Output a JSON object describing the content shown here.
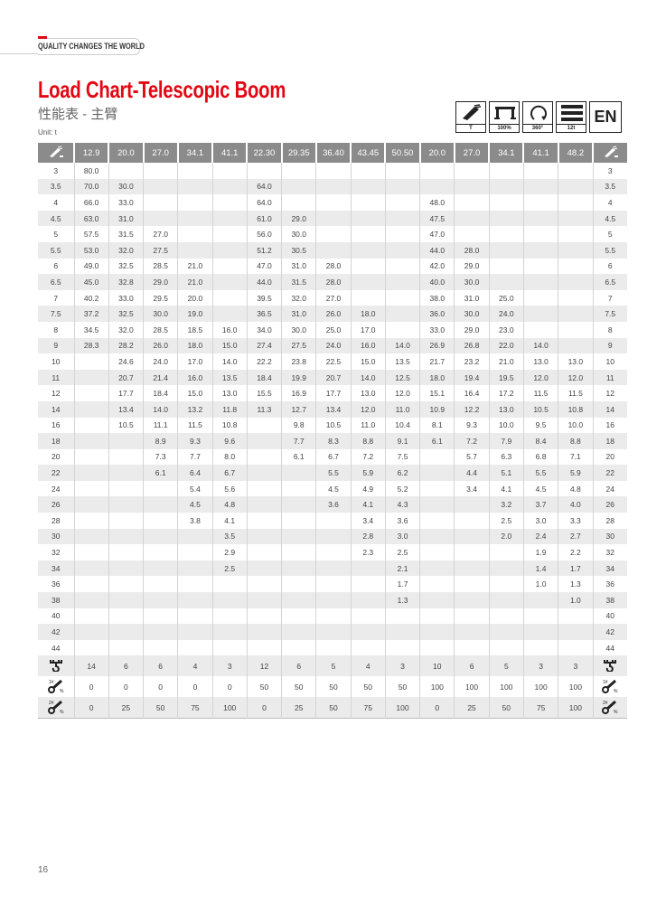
{
  "header": {
    "tagline": "QUALITY CHANGES THE WORLD"
  },
  "title": "Load Chart-Telescopic Boom",
  "subtitle": "性能表 - 主臂",
  "unit": "Unit: t",
  "badges": [
    {
      "icon": "boom-icon",
      "label": "T"
    },
    {
      "icon": "outrigger-icon",
      "label": "100%"
    },
    {
      "icon": "rotation-icon",
      "label": "360°"
    },
    {
      "icon": "counterweight-icon",
      "label": "12t"
    },
    {
      "icon": "language-badge",
      "label": "EN"
    }
  ],
  "table": {
    "corner_icon": "boom-radius-icon",
    "columns": [
      "12.9",
      "20.0",
      "27.0",
      "34.1",
      "41.1",
      "22.30",
      "29.35",
      "36.40",
      "43.45",
      "50.50",
      "20.0",
      "27.0",
      "34.1",
      "41.1",
      "48.2"
    ],
    "rows": [
      {
        "r": "3",
        "v": [
          "80.0",
          "",
          "",
          "",
          "",
          "",
          "",
          "",
          "",
          "",
          "",
          "",
          "",
          "",
          ""
        ]
      },
      {
        "r": "3.5",
        "v": [
          "70.0",
          "30.0",
          "",
          "",
          "",
          "64.0",
          "",
          "",
          "",
          "",
          "",
          "",
          "",
          "",
          ""
        ]
      },
      {
        "r": "4",
        "v": [
          "66.0",
          "33.0",
          "",
          "",
          "",
          "64.0",
          "",
          "",
          "",
          "",
          "48.0",
          "",
          "",
          "",
          ""
        ]
      },
      {
        "r": "4.5",
        "v": [
          "63.0",
          "31.0",
          "",
          "",
          "",
          "61.0",
          "29.0",
          "",
          "",
          "",
          "47.5",
          "",
          "",
          "",
          ""
        ]
      },
      {
        "r": "5",
        "v": [
          "57.5",
          "31.5",
          "27.0",
          "",
          "",
          "56.0",
          "30.0",
          "",
          "",
          "",
          "47.0",
          "",
          "",
          "",
          ""
        ]
      },
      {
        "r": "5.5",
        "v": [
          "53.0",
          "32.0",
          "27.5",
          "",
          "",
          "51.2",
          "30.5",
          "",
          "",
          "",
          "44.0",
          "28.0",
          "",
          "",
          ""
        ]
      },
      {
        "r": "6",
        "v": [
          "49.0",
          "32.5",
          "28.5",
          "21.0",
          "",
          "47.0",
          "31.0",
          "28.0",
          "",
          "",
          "42.0",
          "29.0",
          "",
          "",
          ""
        ]
      },
      {
        "r": "6.5",
        "v": [
          "45.0",
          "32.8",
          "29.0",
          "21.0",
          "",
          "44.0",
          "31.5",
          "28.0",
          "",
          "",
          "40.0",
          "30.0",
          "",
          "",
          ""
        ]
      },
      {
        "r": "7",
        "v": [
          "40.2",
          "33.0",
          "29.5",
          "20.0",
          "",
          "39.5",
          "32.0",
          "27.0",
          "",
          "",
          "38.0",
          "31.0",
          "25.0",
          "",
          ""
        ]
      },
      {
        "r": "7.5",
        "v": [
          "37.2",
          "32.5",
          "30.0",
          "19.0",
          "",
          "36.5",
          "31.0",
          "26.0",
          "18.0",
          "",
          "36.0",
          "30.0",
          "24.0",
          "",
          ""
        ]
      },
      {
        "r": "8",
        "v": [
          "34.5",
          "32.0",
          "28.5",
          "18.5",
          "16.0",
          "34.0",
          "30.0",
          "25.0",
          "17.0",
          "",
          "33.0",
          "29.0",
          "23.0",
          "",
          ""
        ]
      },
      {
        "r": "9",
        "v": [
          "28.3",
          "28.2",
          "26.0",
          "18.0",
          "15.0",
          "27.4",
          "27.5",
          "24.0",
          "16.0",
          "14.0",
          "26.9",
          "26.8",
          "22.0",
          "14.0",
          ""
        ]
      },
      {
        "r": "10",
        "v": [
          "",
          "24.6",
          "24.0",
          "17.0",
          "14.0",
          "22.2",
          "23.8",
          "22.5",
          "15.0",
          "13.5",
          "21.7",
          "23.2",
          "21.0",
          "13.0",
          "13.0"
        ]
      },
      {
        "r": "11",
        "v": [
          "",
          "20.7",
          "21.4",
          "16.0",
          "13.5",
          "18.4",
          "19.9",
          "20.7",
          "14.0",
          "12.5",
          "18.0",
          "19.4",
          "19.5",
          "12.0",
          "12.0"
        ]
      },
      {
        "r": "12",
        "v": [
          "",
          "17.7",
          "18.4",
          "15.0",
          "13.0",
          "15.5",
          "16.9",
          "17.7",
          "13.0",
          "12.0",
          "15.1",
          "16.4",
          "17.2",
          "11.5",
          "11.5"
        ]
      },
      {
        "r": "14",
        "v": [
          "",
          "13.4",
          "14.0",
          "13.2",
          "11.8",
          "11.3",
          "12.7",
          "13.4",
          "12.0",
          "11.0",
          "10.9",
          "12.2",
          "13.0",
          "10.5",
          "10.8"
        ]
      },
      {
        "r": "16",
        "v": [
          "",
          "10.5",
          "11.1",
          "11.5",
          "10.8",
          "",
          "9.8",
          "10.5",
          "11.0",
          "10.4",
          "8.1",
          "9.3",
          "10.0",
          "9.5",
          "10.0"
        ]
      },
      {
        "r": "18",
        "v": [
          "",
          "",
          "8.9",
          "9.3",
          "9.6",
          "",
          "7.7",
          "8.3",
          "8.8",
          "9.1",
          "6.1",
          "7.2",
          "7.9",
          "8.4",
          "8.8"
        ]
      },
      {
        "r": "20",
        "v": [
          "",
          "",
          "7.3",
          "7.7",
          "8.0",
          "",
          "6.1",
          "6.7",
          "7.2",
          "7.5",
          "",
          "5.7",
          "6.3",
          "6.8",
          "7.1"
        ]
      },
      {
        "r": "22",
        "v": [
          "",
          "",
          "6.1",
          "6.4",
          "6.7",
          "",
          "",
          "5.5",
          "5.9",
          "6.2",
          "",
          "4.4",
          "5.1",
          "5.5",
          "5.9"
        ]
      },
      {
        "r": "24",
        "v": [
          "",
          "",
          "",
          "5.4",
          "5.6",
          "",
          "",
          "4.5",
          "4.9",
          "5.2",
          "",
          "3.4",
          "4.1",
          "4.5",
          "4.8"
        ]
      },
      {
        "r": "26",
        "v": [
          "",
          "",
          "",
          "4.5",
          "4.8",
          "",
          "",
          "3.6",
          "4.1",
          "4.3",
          "",
          "",
          "3.2",
          "3.7",
          "4.0"
        ]
      },
      {
        "r": "28",
        "v": [
          "",
          "",
          "",
          "3.8",
          "4.1",
          "",
          "",
          "",
          "3.4",
          "3.6",
          "",
          "",
          "2.5",
          "3.0",
          "3.3"
        ]
      },
      {
        "r": "30",
        "v": [
          "",
          "",
          "",
          "",
          "3.5",
          "",
          "",
          "",
          "2.8",
          "3.0",
          "",
          "",
          "2.0",
          "2.4",
          "2.7"
        ]
      },
      {
        "r": "32",
        "v": [
          "",
          "",
          "",
          "",
          "2.9",
          "",
          "",
          "",
          "2.3",
          "2.5",
          "",
          "",
          "",
          "1.9",
          "2.2"
        ]
      },
      {
        "r": "34",
        "v": [
          "",
          "",
          "",
          "",
          "2.5",
          "",
          "",
          "",
          "",
          "2.1",
          "",
          "",
          "",
          "1.4",
          "1.7"
        ]
      },
      {
        "r": "36",
        "v": [
          "",
          "",
          "",
          "",
          "",
          "",
          "",
          "",
          "",
          "1.7",
          "",
          "",
          "",
          "1.0",
          "1.3"
        ]
      },
      {
        "r": "38",
        "v": [
          "",
          "",
          "",
          "",
          "",
          "",
          "",
          "",
          "",
          "1.3",
          "",
          "",
          "",
          "",
          "1.0"
        ]
      },
      {
        "r": "40",
        "v": [
          "",
          "",
          "",
          "",
          "",
          "",
          "",
          "",
          "",
          "",
          "",
          "",
          "",
          "",
          ""
        ]
      },
      {
        "r": "42",
        "v": [
          "",
          "",
          "",
          "",
          "",
          "",
          "",
          "",
          "",
          "",
          "",
          "",
          "",
          "",
          ""
        ]
      },
      {
        "r": "44",
        "v": [
          "",
          "",
          "",
          "",
          "",
          "",
          "",
          "",
          "",
          "",
          "",
          "",
          "",
          "",
          ""
        ]
      }
    ],
    "footer": [
      {
        "icon": "hook-falls-icon",
        "v": [
          "14",
          "6",
          "6",
          "4",
          "3",
          "12",
          "6",
          "5",
          "4",
          "3",
          "10",
          "6",
          "5",
          "3",
          "3"
        ]
      },
      {
        "icon": "cylinder-1-percent-icon",
        "v": [
          "0",
          "0",
          "0",
          "0",
          "0",
          "50",
          "50",
          "50",
          "50",
          "50",
          "100",
          "100",
          "100",
          "100",
          "100"
        ]
      },
      {
        "icon": "cylinder-2-percent-icon",
        "v": [
          "0",
          "25",
          "50",
          "75",
          "100",
          "0",
          "25",
          "50",
          "75",
          "100",
          "0",
          "25",
          "50",
          "75",
          "100"
        ]
      }
    ]
  },
  "page_number": "16"
}
